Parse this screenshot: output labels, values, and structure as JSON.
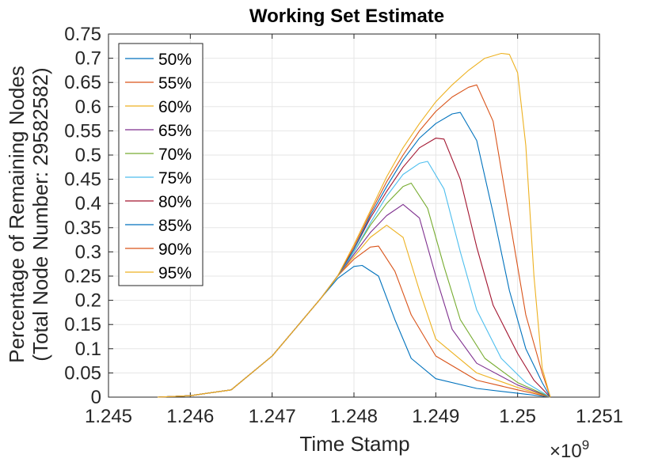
{
  "chart_data": {
    "type": "line",
    "title": "Working Set Estimate",
    "xlabel": "Time Stamp",
    "ylabel_lines": [
      "Percentage of Remaining Nodes",
      "(Total Node Number: 29582582)"
    ],
    "x_multiplier": {
      "base": "×10",
      "exp": "9"
    },
    "xlim": [
      1.245,
      1.251
    ],
    "ylim": [
      0,
      0.75
    ],
    "x_ticks": [
      1.245,
      1.246,
      1.247,
      1.248,
      1.249,
      1.25,
      1.251
    ],
    "x_tick_labels": [
      "1.245",
      "1.246",
      "1.247",
      "1.248",
      "1.249",
      "1.25",
      "1.251"
    ],
    "y_ticks": [
      0,
      0.05,
      0.1,
      0.15,
      0.2,
      0.25,
      0.3,
      0.35,
      0.4,
      0.45,
      0.5,
      0.55,
      0.6,
      0.65,
      0.7,
      0.75
    ],
    "y_tick_labels": [
      "0",
      "0.05",
      "0.1",
      "0.15",
      "0.2",
      "0.25",
      "0.3",
      "0.35",
      "0.4",
      "0.45",
      "0.5",
      "0.55",
      "0.6",
      "0.65",
      "0.7",
      "0.75"
    ],
    "grid": true,
    "legend_position": "top-left",
    "series": [
      {
        "name": "50%",
        "color": "#0072BD",
        "x": [
          1.2456,
          1.246,
          1.2465,
          1.247,
          1.2473,
          1.2476,
          1.2478,
          1.248,
          1.2481,
          1.2483,
          1.2485,
          1.2487,
          1.249,
          1.2495,
          1.25,
          1.2504
        ],
        "y": [
          0,
          0.003,
          0.015,
          0.085,
          0.145,
          0.205,
          0.245,
          0.27,
          0.272,
          0.25,
          0.16,
          0.08,
          0.038,
          0.018,
          0.008,
          0
        ]
      },
      {
        "name": "55%",
        "color": "#D95319",
        "x": [
          1.2456,
          1.246,
          1.2465,
          1.247,
          1.2473,
          1.2476,
          1.2478,
          1.248,
          1.2482,
          1.2483,
          1.2485,
          1.2487,
          1.249,
          1.2495,
          1.25,
          1.2504
        ],
        "y": [
          0,
          0.003,
          0.015,
          0.085,
          0.145,
          0.205,
          0.25,
          0.285,
          0.31,
          0.312,
          0.26,
          0.17,
          0.085,
          0.035,
          0.015,
          0
        ]
      },
      {
        "name": "60%",
        "color": "#EDB120",
        "x": [
          1.2456,
          1.246,
          1.2465,
          1.247,
          1.2473,
          1.2476,
          1.2478,
          1.248,
          1.2482,
          1.2484,
          1.2486,
          1.2488,
          1.249,
          1.2495,
          1.25,
          1.2504
        ],
        "y": [
          0,
          0.003,
          0.015,
          0.085,
          0.145,
          0.205,
          0.25,
          0.29,
          0.33,
          0.355,
          0.33,
          0.22,
          0.12,
          0.05,
          0.02,
          0
        ]
      },
      {
        "name": "65%",
        "color": "#7E2F8E",
        "x": [
          1.2456,
          1.246,
          1.2465,
          1.247,
          1.2473,
          1.2476,
          1.2478,
          1.248,
          1.2482,
          1.2484,
          1.2486,
          1.2488,
          1.249,
          1.2492,
          1.2495,
          1.25,
          1.2504
        ],
        "y": [
          0,
          0.003,
          0.015,
          0.085,
          0.145,
          0.205,
          0.25,
          0.295,
          0.34,
          0.375,
          0.398,
          0.37,
          0.25,
          0.14,
          0.07,
          0.025,
          0
        ]
      },
      {
        "name": "70%",
        "color": "#77AC30",
        "x": [
          1.2456,
          1.246,
          1.2465,
          1.247,
          1.2473,
          1.2476,
          1.2478,
          1.248,
          1.2482,
          1.2484,
          1.2486,
          1.2487,
          1.2489,
          1.2491,
          1.2493,
          1.2496,
          1.25,
          1.2504
        ],
        "y": [
          0,
          0.003,
          0.015,
          0.085,
          0.145,
          0.205,
          0.25,
          0.3,
          0.355,
          0.4,
          0.435,
          0.442,
          0.39,
          0.27,
          0.16,
          0.08,
          0.03,
          0
        ]
      },
      {
        "name": "75%",
        "color": "#4DBEEE",
        "x": [
          1.2456,
          1.246,
          1.2465,
          1.247,
          1.2473,
          1.2476,
          1.2478,
          1.248,
          1.2482,
          1.2484,
          1.2486,
          1.2488,
          1.2489,
          1.2491,
          1.2493,
          1.2495,
          1.2498,
          1.2501,
          1.2504
        ],
        "y": [
          0,
          0.003,
          0.015,
          0.085,
          0.145,
          0.205,
          0.25,
          0.3,
          0.36,
          0.415,
          0.46,
          0.483,
          0.487,
          0.43,
          0.3,
          0.18,
          0.08,
          0.03,
          0
        ]
      },
      {
        "name": "80%",
        "color": "#A2142F",
        "x": [
          1.2456,
          1.246,
          1.2465,
          1.247,
          1.2473,
          1.2476,
          1.2478,
          1.248,
          1.2482,
          1.2484,
          1.2486,
          1.2488,
          1.249,
          1.2491,
          1.2493,
          1.2495,
          1.2497,
          1.25,
          1.2502,
          1.2504
        ],
        "y": [
          0,
          0.003,
          0.015,
          0.085,
          0.145,
          0.205,
          0.25,
          0.305,
          0.37,
          0.425,
          0.475,
          0.515,
          0.535,
          0.533,
          0.45,
          0.31,
          0.19,
          0.09,
          0.035,
          0
        ]
      },
      {
        "name": "85%",
        "color": "#0072BD",
        "x": [
          1.2456,
          1.246,
          1.2465,
          1.247,
          1.2473,
          1.2476,
          1.2478,
          1.248,
          1.2482,
          1.2484,
          1.2486,
          1.2488,
          1.249,
          1.2492,
          1.2493,
          1.2495,
          1.2497,
          1.2499,
          1.2501,
          1.2503,
          1.2504
        ],
        "y": [
          0,
          0.003,
          0.015,
          0.085,
          0.145,
          0.205,
          0.25,
          0.305,
          0.375,
          0.435,
          0.49,
          0.535,
          0.565,
          0.585,
          0.588,
          0.53,
          0.38,
          0.22,
          0.1,
          0.03,
          0
        ]
      },
      {
        "name": "90%",
        "color": "#D95319",
        "x": [
          1.2456,
          1.246,
          1.2465,
          1.247,
          1.2473,
          1.2476,
          1.2478,
          1.248,
          1.2482,
          1.2484,
          1.2486,
          1.2488,
          1.249,
          1.2492,
          1.2494,
          1.2495,
          1.2497,
          1.2499,
          1.2501,
          1.2503,
          1.2504
        ],
        "y": [
          0,
          0.003,
          0.015,
          0.085,
          0.145,
          0.205,
          0.25,
          0.31,
          0.38,
          0.445,
          0.5,
          0.55,
          0.59,
          0.62,
          0.64,
          0.645,
          0.57,
          0.37,
          0.17,
          0.05,
          0
        ]
      },
      {
        "name": "95%",
        "color": "#EDB120",
        "x": [
          1.2456,
          1.246,
          1.2465,
          1.247,
          1.2473,
          1.2476,
          1.2478,
          1.248,
          1.2482,
          1.2484,
          1.2486,
          1.2488,
          1.249,
          1.2492,
          1.2494,
          1.2496,
          1.2498,
          1.2499,
          1.25,
          1.2501,
          1.2502,
          1.2503,
          1.2504
        ],
        "y": [
          0,
          0.003,
          0.015,
          0.085,
          0.145,
          0.205,
          0.25,
          0.315,
          0.385,
          0.455,
          0.515,
          0.565,
          0.61,
          0.645,
          0.675,
          0.7,
          0.71,
          0.708,
          0.67,
          0.52,
          0.25,
          0.06,
          0
        ]
      }
    ]
  }
}
